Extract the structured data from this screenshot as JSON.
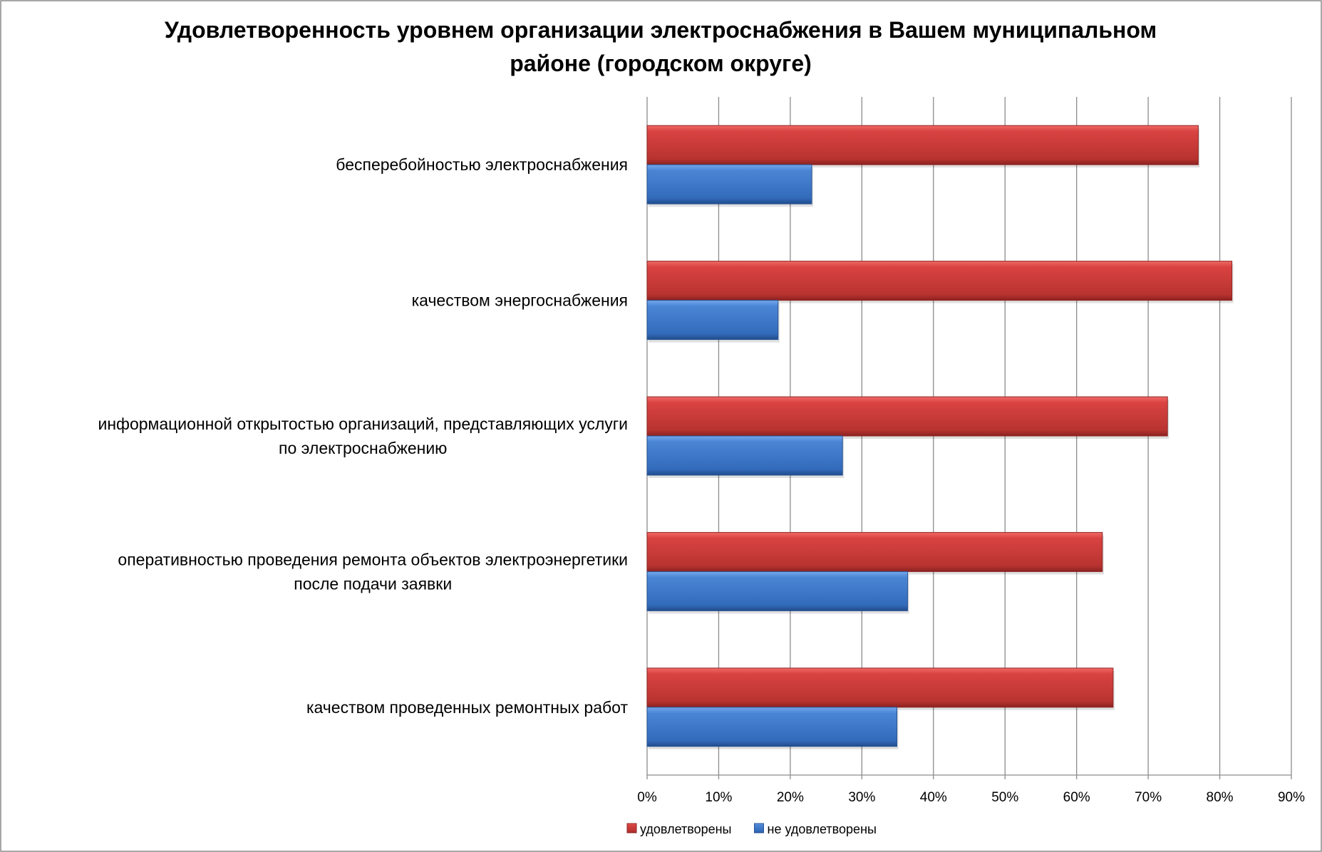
{
  "chart_data": {
    "type": "bar",
    "orientation": "horizontal",
    "title": "Удовлетворенность уровнем организации электроснабжения в Вашем муниципальном районе (городском округе)",
    "title_lines": [
      "Удовлетворенность уровнем организации электроснабжения в Вашем муниципальном",
      "районе (городском округе)"
    ],
    "categories": [
      [
        "бесперебойностью  электроснабжения"
      ],
      [
        "качеством энергоснабжения"
      ],
      [
        "информационной открытостью организаций, представляющих услуги",
        "по электроснабжению"
      ],
      [
        "оперативностью проведения ремонта объектов электроэнергетики",
        "после подачи заявки"
      ],
      [
        "качеством проведенных ремонтных работ"
      ]
    ],
    "series": [
      {
        "name": "удовлетворены",
        "color": "#c0392f",
        "values": [
          77.0,
          81.7,
          72.7,
          63.6,
          65.1
        ]
      },
      {
        "name": "не удовлетворены",
        "color": "#3a74c4",
        "values": [
          23.0,
          18.3,
          27.3,
          36.4,
          34.9
        ]
      }
    ],
    "xlim": [
      0,
      90
    ],
    "x_ticks": [
      "0%",
      "10%",
      "20%",
      "30%",
      "40%",
      "50%",
      "60%",
      "70%",
      "80%",
      "90%"
    ],
    "grid": true,
    "legend_position": "bottom",
    "xlabel": "",
    "ylabel": ""
  }
}
